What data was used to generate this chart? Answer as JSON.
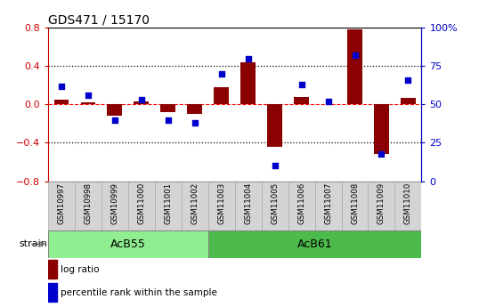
{
  "title": "GDS471 / 15170",
  "samples": [
    "GSM10997",
    "GSM10998",
    "GSM10999",
    "GSM11000",
    "GSM11001",
    "GSM11002",
    "GSM11003",
    "GSM11004",
    "GSM11005",
    "GSM11006",
    "GSM11007",
    "GSM11008",
    "GSM11009",
    "GSM11010"
  ],
  "log_ratio": [
    0.05,
    0.02,
    -0.12,
    0.03,
    -0.08,
    -0.1,
    0.18,
    0.44,
    -0.44,
    0.08,
    0.0,
    0.78,
    -0.52,
    0.07
  ],
  "percentile_rank": [
    62,
    56,
    40,
    53,
    40,
    38,
    70,
    80,
    10,
    63,
    52,
    82,
    18,
    66
  ],
  "groups": [
    {
      "label": "AcB55",
      "start": 0,
      "end": 5,
      "color": "#90EE90"
    },
    {
      "label": "AcB61",
      "start": 6,
      "end": 13,
      "color": "#4CBB4C"
    }
  ],
  "bar_color": "#8B0000",
  "dot_color": "#0000CD",
  "ylim_left": [
    -0.8,
    0.8
  ],
  "ylim_right": [
    0,
    100
  ],
  "yticks_left": [
    -0.8,
    -0.4,
    0.0,
    0.4,
    0.8
  ],
  "yticks_right": [
    0,
    25,
    50,
    75,
    100
  ],
  "ytick_labels_right": [
    "0",
    "25",
    "50",
    "75",
    "100%"
  ],
  "left_ycolor": "#CC0000",
  "right_ycolor": "#0000CC",
  "figsize": [
    5.38,
    3.45
  ],
  "dpi": 100,
  "bar_width": 0.55,
  "dot_size": 22,
  "sample_box_color": "#d4d4d4",
  "sample_box_edge": "#aaaaaa"
}
